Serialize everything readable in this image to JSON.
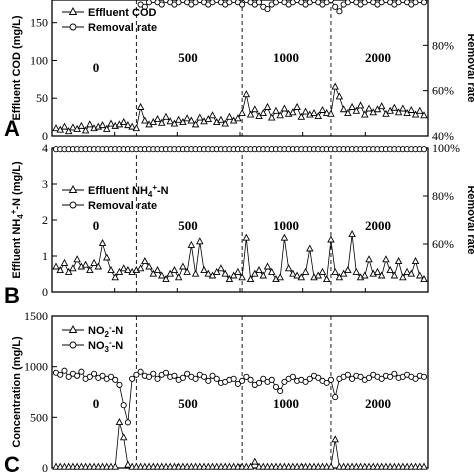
{
  "chart_data": [
    {
      "panel": "A",
      "type": "line",
      "ylabel": "Effluent COD (mg/L)",
      "y2label": "Removal rate",
      "ylim": [
        0,
        180
      ],
      "yticks": [
        "0",
        "50",
        "100",
        "150"
      ],
      "y2lim": [
        40,
        100
      ],
      "y2ticks": [
        "40%",
        "60%",
        "80%"
      ],
      "phases": [
        "0",
        "500",
        "1000",
        "2000"
      ],
      "phase_boundaries": [
        19,
        44,
        65
      ],
      "legend": [
        "Effluent COD",
        "Removal rate"
      ],
      "series": [
        {
          "name": "Effluent COD",
          "marker": "triangle",
          "axis": "left",
          "values": [
            10,
            8,
            12,
            6,
            11,
            9,
            13,
            7,
            15,
            10,
            12,
            14,
            9,
            16,
            13,
            15,
            18,
            14,
            12,
            10,
            38,
            20,
            15,
            18,
            22,
            17,
            25,
            19,
            16,
            21,
            18,
            23,
            20,
            15,
            24,
            19,
            22,
            27,
            18,
            21,
            16,
            25,
            20,
            23,
            30,
            55,
            28,
            35,
            26,
            30,
            38,
            24,
            33,
            27,
            36,
            29,
            31,
            38,
            25,
            32,
            28,
            30,
            26,
            34,
            30,
            29,
            65,
            52,
            35,
            30,
            38,
            33,
            40,
            28,
            36,
            31,
            35,
            39,
            29,
            33,
            37,
            31,
            36,
            30,
            34,
            28,
            33,
            27
          ]
        },
        {
          "name": "Removal rate",
          "marker": "circle",
          "axis": "right",
          "values": [
            null,
            null,
            null,
            null,
            null,
            null,
            null,
            null,
            null,
            null,
            null,
            null,
            null,
            null,
            null,
            null,
            null,
            null,
            null,
            null,
            98,
            97,
            99,
            100,
            99,
            98,
            100,
            99,
            98,
            99,
            100,
            99,
            98,
            99,
            100,
            99,
            98,
            99,
            100,
            99,
            98,
            99,
            100,
            99,
            98,
            100,
            99,
            98,
            99,
            97,
            96,
            98,
            99,
            100,
            99,
            98,
            99,
            100,
            99,
            98,
            99,
            100,
            99,
            98,
            99,
            100,
            97,
            95,
            98,
            99,
            100,
            99,
            98,
            99,
            100,
            99,
            98,
            99,
            100,
            99,
            98,
            99,
            100,
            99,
            98,
            99,
            100,
            99
          ]
        }
      ]
    },
    {
      "panel": "B",
      "type": "line",
      "ylabel": "Effluent NH4+-N (mg/L)",
      "y2label": "Removal rate",
      "ylim": [
        0,
        4
      ],
      "yticks": [
        "0",
        "1",
        "2",
        "3",
        "4"
      ],
      "y2lim": [
        40,
        100
      ],
      "y2ticks": [
        "60%",
        "80%",
        "100%"
      ],
      "phases": [
        "0",
        "500",
        "1000",
        "2000"
      ],
      "phase_boundaries": [
        19,
        44,
        65
      ],
      "legend": [
        "Effluent NH4+-N",
        "Removal rate"
      ],
      "series": [
        {
          "name": "Effluent NH4+-N",
          "marker": "triangle",
          "axis": "left",
          "values": [
            0.7,
            0.6,
            0.8,
            0.55,
            0.65,
            0.9,
            0.7,
            0.75,
            0.6,
            0.8,
            0.7,
            1.35,
            0.95,
            0.6,
            0.4,
            0.55,
            0.65,
            0.6,
            0.55,
            0.6,
            0.65,
            0.85,
            0.7,
            0.5,
            0.6,
            0.45,
            0.35,
            0.5,
            0.6,
            0.4,
            0.7,
            0.55,
            1.3,
            0.5,
            1.4,
            0.6,
            0.5,
            0.45,
            0.55,
            0.65,
            0.5,
            0.35,
            0.45,
            0.55,
            0.4,
            1.5,
            0.35,
            0.5,
            0.6,
            0.45,
            0.7,
            0.55,
            0.35,
            0.4,
            1.5,
            0.65,
            0.5,
            0.45,
            0.4,
            0.55,
            1.2,
            0.4,
            0.45,
            0.55,
            0.35,
            1.45,
            0.55,
            0.4,
            0.5,
            0.6,
            1.6,
            0.55,
            0.4,
            0.45,
            0.9,
            0.5,
            0.55,
            0.45,
            0.9,
            0.6,
            0.45,
            0.85,
            0.4,
            0.55,
            0.5,
            0.85,
            0.45,
            0.35
          ]
        },
        {
          "name": "Removal rate",
          "marker": "circle",
          "axis": "right",
          "values": [
            99.5,
            99.5,
            99.5,
            99.5,
            99.5,
            99.5,
            99.5,
            99.5,
            99.5,
            99.5,
            99.5,
            99.5,
            99.5,
            99.5,
            99.5,
            99.5,
            99.5,
            99.5,
            99.5,
            99.5,
            99.5,
            99.5,
            99.5,
            99.5,
            99.5,
            99.5,
            99.5,
            99.5,
            99.5,
            99.5,
            99.5,
            99.5,
            99.5,
            99.5,
            99.5,
            99.5,
            99.5,
            99.5,
            99.5,
            99.5,
            99.5,
            99.5,
            99.5,
            99.5,
            99.5,
            99.5,
            99.5,
            99.5,
            99.5,
            99.5,
            99.5,
            99.5,
            99.5,
            99.5,
            99.5,
            99.5,
            99.5,
            99.5,
            99.5,
            99.5,
            99.5,
            99.5,
            99.5,
            99.5,
            99.5,
            99.5,
            99.5,
            99.5,
            99.5,
            99.5,
            99.5,
            99.5,
            99.5,
            99.5,
            99.5,
            99.5,
            99.5,
            99.5,
            99.5,
            99.5,
            99.5,
            99.5,
            99.5,
            99.5,
            99.5,
            99.5,
            99.5,
            99.5
          ]
        }
      ]
    },
    {
      "panel": "C",
      "type": "line",
      "ylabel": "Concentration (mg/L)",
      "ylim": [
        0,
        1500
      ],
      "yticks": [
        "0",
        "500",
        "1000",
        "1500"
      ],
      "phases": [
        "0",
        "500",
        "1000",
        "2000"
      ],
      "phase_boundaries": [
        19,
        44,
        65
      ],
      "legend": [
        "NO2--N",
        "NO3--N"
      ],
      "series": [
        {
          "name": "NO2--N",
          "marker": "triangle",
          "axis": "left",
          "values": [
            10,
            10,
            10,
            10,
            10,
            10,
            10,
            10,
            10,
            10,
            10,
            10,
            10,
            10,
            10,
            450,
            300,
            30,
            10,
            10,
            10,
            10,
            10,
            10,
            10,
            10,
            10,
            10,
            10,
            10,
            10,
            10,
            10,
            10,
            10,
            10,
            10,
            10,
            10,
            10,
            10,
            10,
            10,
            10,
            10,
            10,
            10,
            60,
            10,
            10,
            10,
            10,
            10,
            10,
            10,
            10,
            10,
            10,
            10,
            10,
            10,
            10,
            10,
            10,
            10,
            10,
            280,
            10,
            10,
            10,
            10,
            10,
            10,
            10,
            10,
            10,
            10,
            10,
            10,
            10,
            10,
            10,
            10,
            10,
            10,
            10,
            10,
            10
          ]
        },
        {
          "name": "NO3--N",
          "marker": "circle",
          "axis": "left",
          "values": [
            940,
            920,
            960,
            900,
            930,
            910,
            950,
            880,
            900,
            930,
            890,
            910,
            880,
            900,
            870,
            820,
            620,
            450,
            880,
            920,
            950,
            910,
            900,
            930,
            880,
            920,
            940,
            900,
            910,
            870,
            890,
            930,
            900,
            880,
            920,
            900,
            860,
            910,
            880,
            840,
            850,
            870,
            880,
            830,
            860,
            900,
            870,
            820,
            840,
            880,
            850,
            870,
            800,
            760,
            850,
            880,
            900,
            860,
            870,
            850,
            880,
            910,
            890,
            860,
            840,
            870,
            700,
            880,
            900,
            920,
            880,
            910,
            900,
            870,
            890,
            920,
            900,
            880,
            910,
            900,
            930,
            890,
            900,
            920,
            900,
            880,
            910,
            900
          ]
        }
      ]
    }
  ]
}
